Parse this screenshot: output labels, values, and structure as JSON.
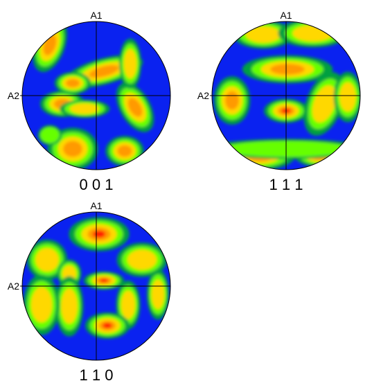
{
  "figures": [
    {
      "title": "0 0 1",
      "axis1": "A1",
      "axis2": "A2"
    },
    {
      "title": "1 1 1",
      "axis1": "A1",
      "axis2": "A2"
    },
    {
      "title": "1 1 0",
      "axis1": "A1",
      "axis2": "A2"
    }
  ]
}
